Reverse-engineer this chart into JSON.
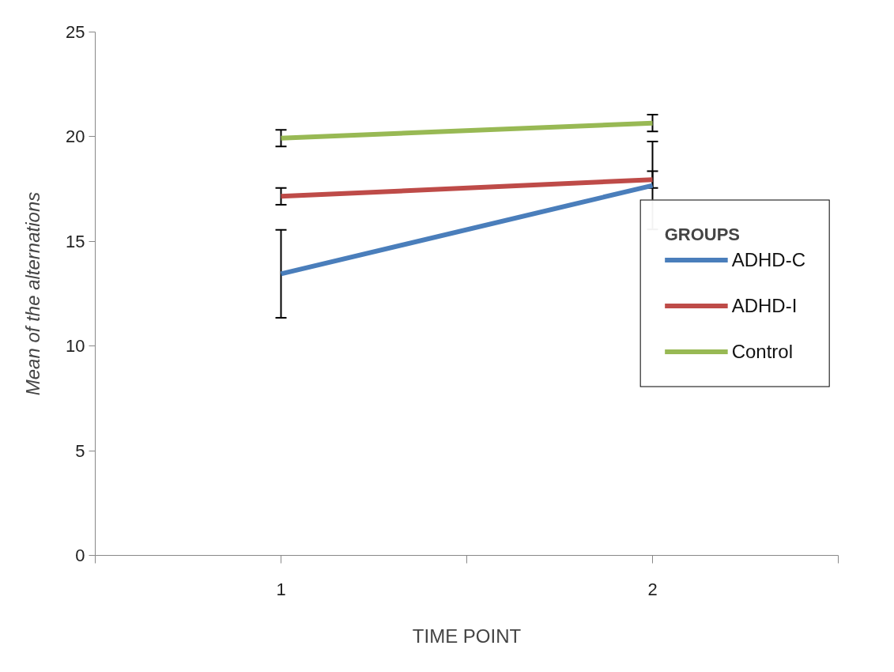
{
  "chart_data": {
    "type": "line",
    "xlabel": "TIME POINT",
    "ylabel": "Mean of the alternations",
    "x": [
      1,
      2
    ],
    "xlim": [
      0.5,
      2.5
    ],
    "xticks": [
      {
        "value": 0.5,
        "label": null
      },
      1,
      {
        "value": 1.5,
        "label": null
      },
      2,
      {
        "value": 2.5,
        "label": null
      }
    ],
    "ylim": [
      0,
      25
    ],
    "yticks": [
      0,
      5,
      10,
      15,
      20,
      25
    ],
    "series": [
      {
        "name": "ADHD-C",
        "color": "#4a7ebb",
        "values": [
          13.45,
          17.67
        ],
        "errors": [
          2.1,
          2.1
        ]
      },
      {
        "name": "ADHD-I",
        "color": "#be4b48",
        "values": [
          17.15,
          17.95
        ],
        "errors": [
          0.4,
          0.4
        ]
      },
      {
        "name": "Control",
        "color": "#98b954",
        "values": [
          19.93,
          20.65
        ],
        "errors": [
          0.4,
          0.4
        ]
      }
    ],
    "legend": "right",
    "legend_title": "GROUPS",
    "grid": false,
    "marker": "none",
    "line_style": "solid"
  }
}
